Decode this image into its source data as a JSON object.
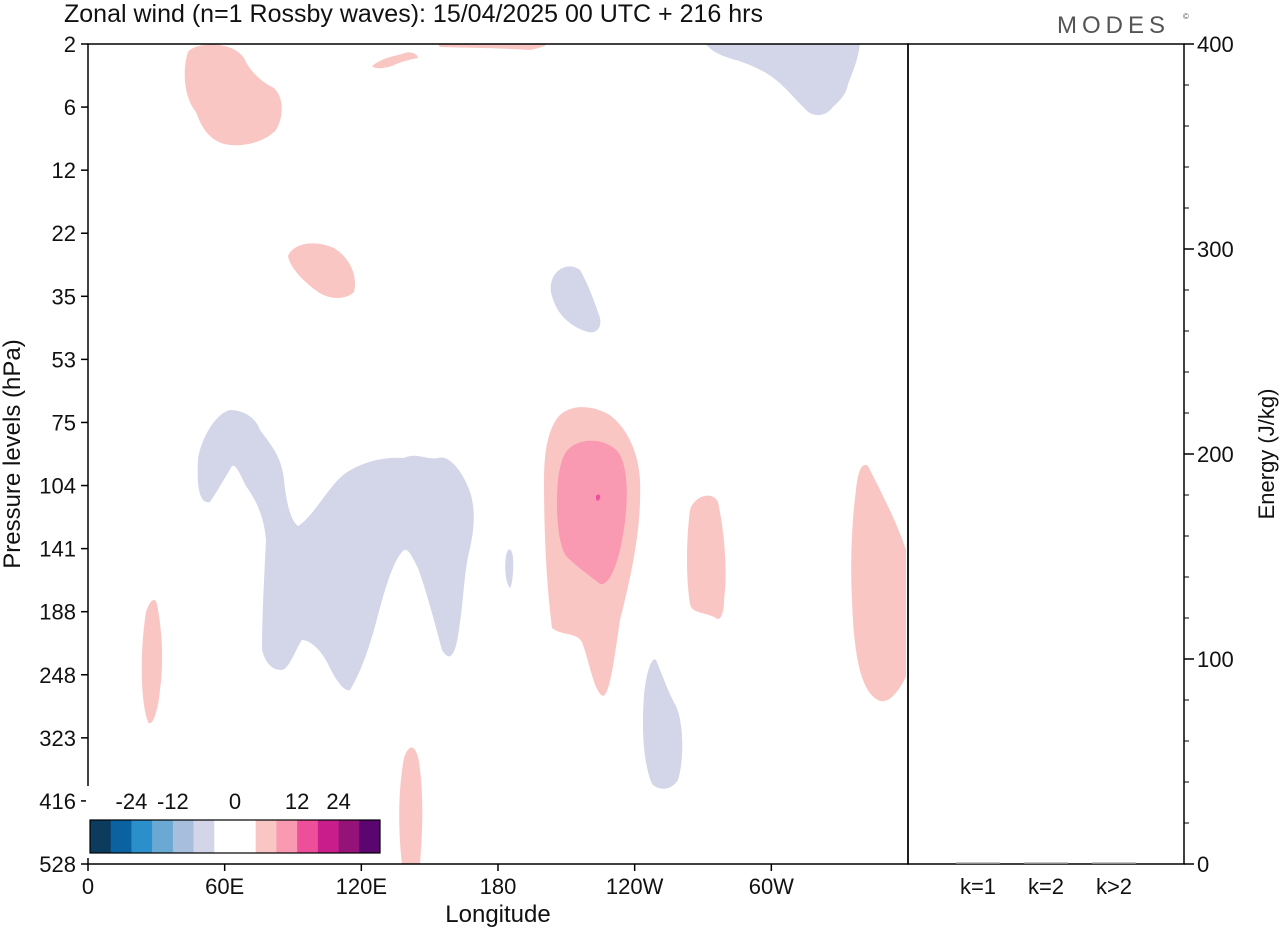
{
  "header": {
    "title": "Zonal wind (n=1 Rossby waves):  15/04/2025  00 UTC  + 216 hrs",
    "brand": "MODES",
    "brand_mark": "©"
  },
  "chart_data": [
    {
      "type": "heatmap",
      "subtype": "filled-contour",
      "xlabel": "Longitude",
      "ylabel": "Pressure levels (hPa)",
      "x_ticks": [
        "0",
        "60E",
        "120E",
        "180",
        "120W",
        "60W"
      ],
      "x_tick_values": [
        0,
        60,
        120,
        180,
        240,
        300
      ],
      "xlim": [
        0,
        360
      ],
      "y_ticks": [
        "2",
        "6",
        "12",
        "22",
        "35",
        "53",
        "75",
        "104",
        "141",
        "188",
        "248",
        "323",
        "416",
        "528"
      ],
      "y_scale": "pressure levels, 2 at top to 528 at bottom",
      "colorbar": {
        "labels": [
          "-24",
          "-12",
          "0",
          "12",
          "24"
        ],
        "colors": [
          "#0c3b5e",
          "#0b62a0",
          "#2b8fcb",
          "#6aa9d4",
          "#a7bedc",
          "#d3d5e8",
          "#ffffff",
          "#ffffff",
          "#f9c6c3",
          "#fa99b2",
          "#ee4f9a",
          "#c81d8b",
          "#951279",
          "#5a0570"
        ]
      },
      "contour_colors": {
        "negative_light": "#d3d5e8",
        "positive_light": "#f9c6c3",
        "positive_medium": "#fa99b2",
        "positive_strong": "#ee4f9a"
      }
    },
    {
      "type": "bar",
      "categories": [
        "k=1",
        "k=2",
        "k>2"
      ],
      "values": [
        0,
        0,
        0
      ],
      "ylabel": "Energy (J/kg)",
      "ylim": [
        0,
        400
      ],
      "y_ticks": [
        "0",
        "100",
        "200",
        "300",
        "400"
      ],
      "y_tick_values": [
        0,
        100,
        200,
        300,
        400
      ],
      "y_minor_step": 20
    }
  ]
}
